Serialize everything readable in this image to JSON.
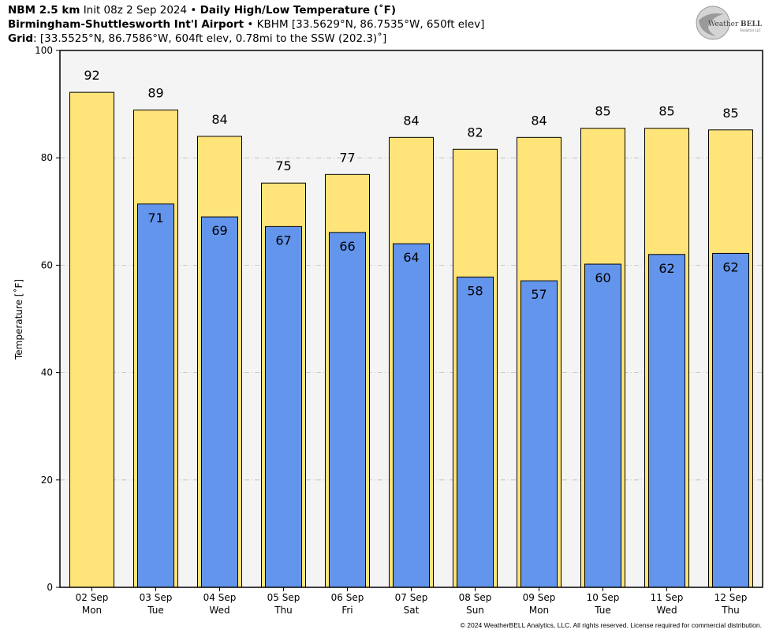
{
  "header": {
    "model": "NBM 2.5 km",
    "init": "Init 08z 2 Sep 2024",
    "bullet": "•",
    "product": "Daily High/Low Temperature (˚F)",
    "station_name": "Birmingham-Shuttlesworth Int'l Airport",
    "station_info": "KBHM [33.5629°N, 86.7535°W, 650ft elev]",
    "grid_label": "Grid",
    "grid_info": ": [33.5525°N, 86.7586°W, 604ft elev, 0.78mi to the SSW (202.3)˚]"
  },
  "logo": {
    "text_a": "Weather",
    "text_b": "BELL",
    "sub": "Analytics LLC"
  },
  "copyright": "© 2024 WeatherBELL Analytics, LLC. All rights reserved. License required for commercial distribution.",
  "colors": {
    "high": "#FFE47A",
    "low": "#6495ED",
    "plot_bg": "#F4F4F4",
    "grid": "#BBBBBB"
  },
  "chart_data": {
    "type": "bar",
    "ylabel": "Temperature [˚F]",
    "ylim": [
      0,
      100
    ],
    "yticks": [
      0,
      20,
      40,
      60,
      80,
      100
    ],
    "grid": true,
    "categories": [
      {
        "date": "02 Sep",
        "day": "Mon"
      },
      {
        "date": "03 Sep",
        "day": "Tue"
      },
      {
        "date": "04 Sep",
        "day": "Wed"
      },
      {
        "date": "05 Sep",
        "day": "Thu"
      },
      {
        "date": "06 Sep",
        "day": "Fri"
      },
      {
        "date": "07 Sep",
        "day": "Sat"
      },
      {
        "date": "08 Sep",
        "day": "Sun"
      },
      {
        "date": "09 Sep",
        "day": "Mon"
      },
      {
        "date": "10 Sep",
        "day": "Tue"
      },
      {
        "date": "11 Sep",
        "day": "Wed"
      },
      {
        "date": "12 Sep",
        "day": "Thu"
      }
    ],
    "series": [
      {
        "key": "high",
        "values": [
          92.2,
          88.9,
          84.0,
          75.3,
          76.9,
          83.8,
          81.6,
          83.8,
          85.5,
          85.5,
          85.2
        ],
        "labels": [
          "92",
          "89",
          "84",
          "75",
          "77",
          "84",
          "82",
          "84",
          "85",
          "85",
          "85"
        ]
      },
      {
        "key": "low",
        "values": [
          null,
          71.4,
          69.0,
          67.2,
          66.1,
          64.0,
          57.8,
          57.1,
          60.2,
          62.0,
          62.2
        ],
        "labels": [
          "",
          "71",
          "69",
          "67",
          "66",
          "64",
          "58",
          "57",
          "60",
          "62",
          "62"
        ]
      }
    ]
  }
}
